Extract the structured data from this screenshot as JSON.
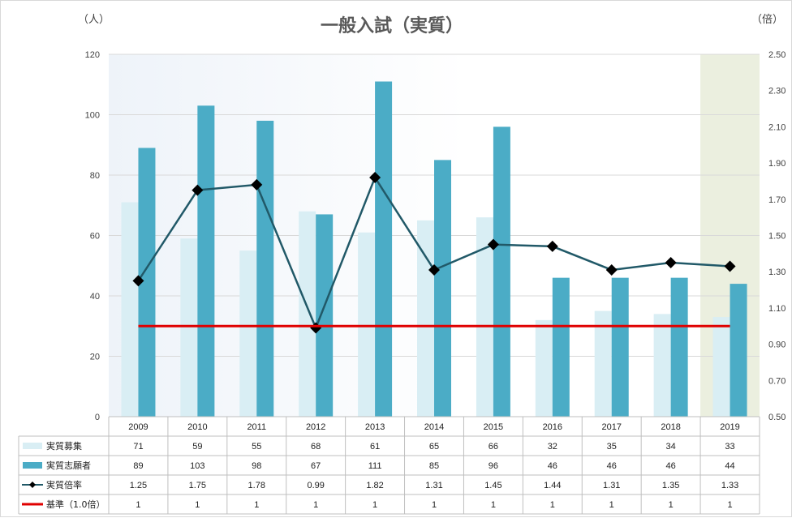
{
  "chart_data": {
    "type": "bar",
    "title": "一般入試（実質）",
    "left_unit": "（人）",
    "right_unit": "（倍）",
    "categories": [
      "2009",
      "2010",
      "2011",
      "2012",
      "2013",
      "2014",
      "2015",
      "2016",
      "2017",
      "2018",
      "2019"
    ],
    "ylim": [
      0,
      120
    ],
    "y_ticks": [
      "0",
      "20",
      "40",
      "60",
      "80",
      "100",
      "120"
    ],
    "y2lim": [
      0.5,
      2.5
    ],
    "y2_ticks": [
      "0.50",
      "0.70",
      "0.90",
      "1.10",
      "1.30",
      "1.50",
      "1.70",
      "1.90",
      "2.10",
      "2.30",
      "2.50"
    ],
    "highlighted_category": "2019",
    "series": [
      {
        "name": "実質募集",
        "kind": "bar",
        "axis": "left",
        "color": "#d9eef4",
        "values": [
          71,
          59,
          55,
          68,
          61,
          65,
          66,
          32,
          35,
          34,
          33
        ],
        "labels": [
          "71",
          "59",
          "55",
          "68",
          "61",
          "65",
          "66",
          "32",
          "35",
          "34",
          "33"
        ]
      },
      {
        "name": "実質志願者",
        "kind": "bar",
        "axis": "left",
        "color": "#4bacc6",
        "values": [
          89,
          103,
          98,
          67,
          111,
          85,
          96,
          46,
          46,
          46,
          44
        ],
        "labels": [
          "89",
          "103",
          "98",
          "67",
          "111",
          "85",
          "96",
          "46",
          "46",
          "46",
          "44"
        ]
      },
      {
        "name": "実質倍率",
        "kind": "line",
        "axis": "right",
        "color": "#215968",
        "marker": "diamond",
        "values": [
          1.25,
          1.75,
          1.78,
          0.99,
          1.82,
          1.31,
          1.45,
          1.44,
          1.31,
          1.35,
          1.33
        ],
        "labels": [
          "1.25",
          "1.75",
          "1.78",
          "0.99",
          "1.82",
          "1.31",
          "1.45",
          "1.44",
          "1.31",
          "1.35",
          "1.33"
        ]
      },
      {
        "name": "基準（1.0倍）",
        "kind": "line",
        "axis": "right",
        "color": "#e00000",
        "values": [
          1,
          1,
          1,
          1,
          1,
          1,
          1,
          1,
          1,
          1,
          1
        ],
        "labels": [
          "1",
          "1",
          "1",
          "1",
          "1",
          "1",
          "1",
          "1",
          "1",
          "1",
          "1"
        ]
      }
    ],
    "legend_placement": "data-table-bottom",
    "grid": true
  }
}
